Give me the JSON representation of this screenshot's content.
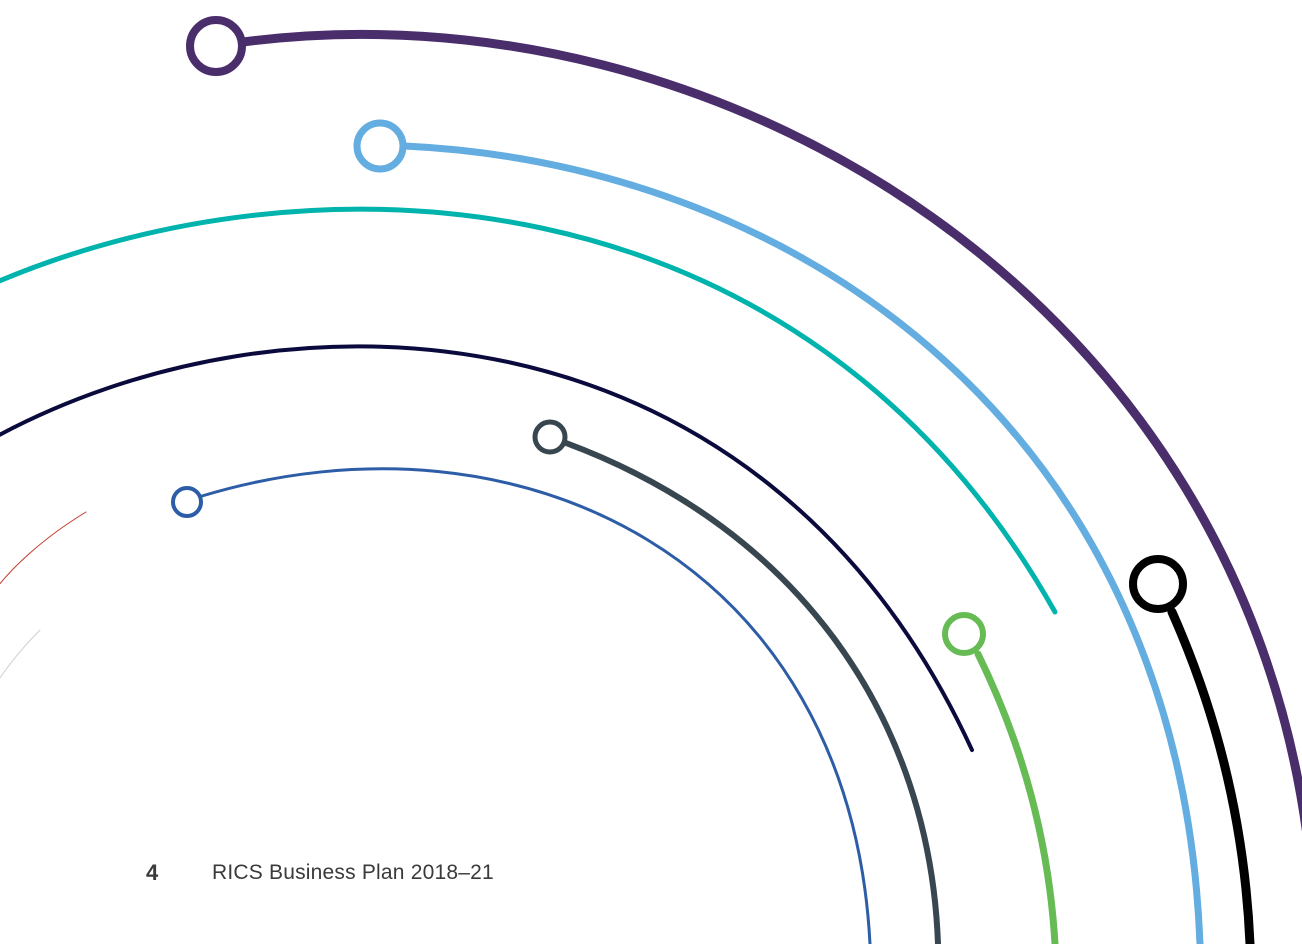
{
  "footer": {
    "page_number": "4",
    "document_title": "RICS Business Plan 2018–21"
  },
  "arcs": [
    {
      "name": "purple-arc",
      "color": "#4a2d6b"
    },
    {
      "name": "light-blue-arc",
      "color": "#63ade0"
    },
    {
      "name": "teal-arc",
      "color": "#00b3ad"
    },
    {
      "name": "navy-arc",
      "color": "#0b0a3d"
    },
    {
      "name": "slate-arc",
      "color": "#37464f"
    },
    {
      "name": "blue-arc",
      "color": "#2d5da6"
    },
    {
      "name": "green-arc",
      "color": "#66bb55"
    },
    {
      "name": "black-arc",
      "color": "#000000"
    },
    {
      "name": "red-arc",
      "color": "#c0392b"
    }
  ]
}
